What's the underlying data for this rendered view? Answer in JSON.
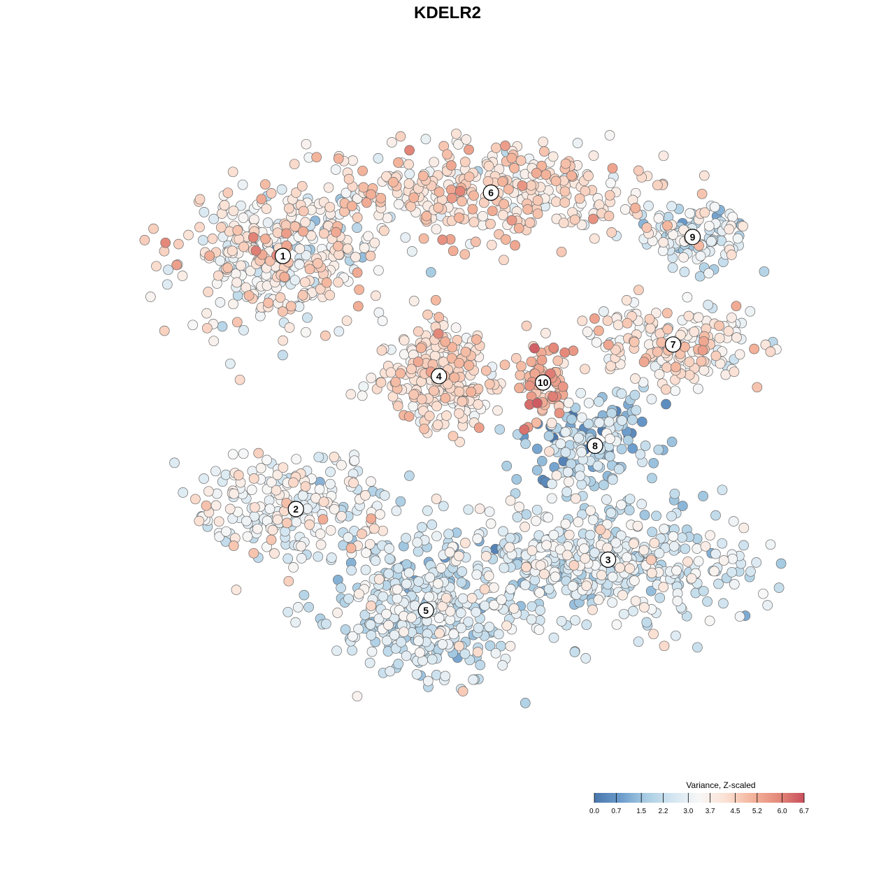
{
  "chart_data": {
    "type": "scatter",
    "title": "KDELR2",
    "legend": {
      "title": "Variance, Z-scaled",
      "ticks": [
        "0.0",
        "0.7",
        "1.5",
        "2.2",
        "3.0",
        "3.7",
        "4.5",
        "5.2",
        "6.0",
        "6.7"
      ],
      "tick_values": [
        0.0,
        0.7,
        1.5,
        2.2,
        3.0,
        3.7,
        4.5,
        5.2,
        6.0,
        6.7
      ],
      "range": [
        0.0,
        6.7
      ],
      "placement": "bottom-right",
      "colors": [
        "#4a77ad",
        "#6b9ccc",
        "#a9cde3",
        "#d4e6f1",
        "#f7f7f7",
        "#fbe1d4",
        "#f4b59c",
        "#e58a7b",
        "#c94f5c"
      ]
    },
    "axes": {
      "x_visible": false,
      "y_visible": false,
      "grid": false,
      "xlim": [
        0,
        100
      ],
      "ylim": [
        0,
        100
      ]
    },
    "clusters": [
      {
        "label": "1",
        "x": 22.0,
        "y": 80.0,
        "mean": 3.6,
        "sd": 0.9
      },
      {
        "label": "2",
        "x": 24.0,
        "y": 40.0,
        "mean": 3.2,
        "sd": 0.7
      },
      {
        "label": "3",
        "x": 72.0,
        "y": 32.0,
        "mean": 2.7,
        "sd": 0.7
      },
      {
        "label": "4",
        "x": 46.0,
        "y": 61.0,
        "mean": 4.0,
        "sd": 0.6
      },
      {
        "label": "5",
        "x": 44.0,
        "y": 24.0,
        "mean": 2.4,
        "sd": 0.7
      },
      {
        "label": "6",
        "x": 54.0,
        "y": 90.0,
        "mean": 4.1,
        "sd": 0.7
      },
      {
        "label": "7",
        "x": 82.0,
        "y": 66.0,
        "mean": 3.8,
        "sd": 0.7
      },
      {
        "label": "8",
        "x": 70.0,
        "y": 50.0,
        "mean": 1.8,
        "sd": 0.9
      },
      {
        "label": "9",
        "x": 85.0,
        "y": 83.0,
        "mean": 2.8,
        "sd": 0.8
      },
      {
        "label": "10",
        "x": 62.0,
        "y": 60.0,
        "mean": 5.2,
        "sd": 0.6
      }
    ]
  }
}
